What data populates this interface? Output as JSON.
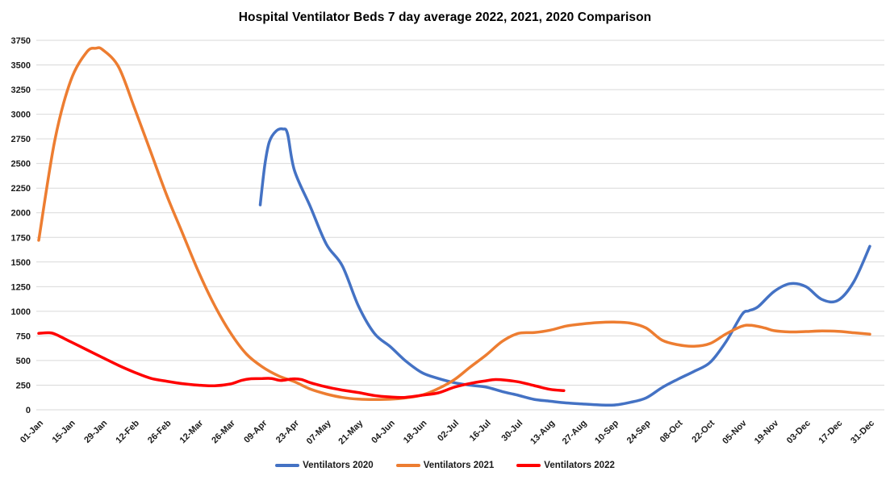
{
  "title": "Hospital Ventilator Beds 7 day average 2022, 2021, 2020 Comparison",
  "chart_data": {
    "type": "line",
    "title": "Hospital Ventilator Beds 7 day average 2022, 2021, 2020 Comparison",
    "xlabel": "",
    "ylabel": "",
    "grid": "horizontal",
    "gridline_color": "#D9D9D9",
    "background": "#FFFFFF",
    "legend_position": "bottom",
    "ylim": [
      0,
      3750
    ],
    "y_ticks": [
      0,
      250,
      500,
      750,
      1000,
      1250,
      1500,
      1750,
      2000,
      2250,
      2500,
      2750,
      3000,
      3250,
      3500,
      3750
    ],
    "x_tick_labels": [
      "01-Jan",
      "15-Jan",
      "29-Jan",
      "12-Feb",
      "26-Feb",
      "12-Mar",
      "26-Mar",
      "09-Apr",
      "23-Apr",
      "07-May",
      "21-May",
      "04-Jun",
      "18-Jun",
      "02-Jul",
      "16-Jul",
      "30-Jul",
      "13-Aug",
      "27-Aug",
      "10-Sep",
      "24-Sep",
      "08-Oct",
      "22-Oct",
      "05-Nov",
      "19-Nov",
      "03-Dec",
      "17-Dec",
      "31-Dec"
    ],
    "x_tick_interval_days": 14,
    "x_range_days": [
      0,
      364
    ],
    "series": [
      {
        "name": "Ventilators 2020",
        "color": "#4472C4",
        "points": [
          [
            97,
            2080
          ],
          [
            99,
            2480
          ],
          [
            101,
            2720
          ],
          [
            104,
            2830
          ],
          [
            107,
            2850
          ],
          [
            109,
            2800
          ],
          [
            112,
            2430
          ],
          [
            119,
            2060
          ],
          [
            126,
            1680
          ],
          [
            133,
            1460
          ],
          [
            140,
            1054
          ],
          [
            147,
            775
          ],
          [
            154,
            640
          ],
          [
            161,
            490
          ],
          [
            168,
            375
          ],
          [
            175,
            318
          ],
          [
            182,
            275
          ],
          [
            189,
            250
          ],
          [
            196,
            230
          ],
          [
            203,
            185
          ],
          [
            210,
            147
          ],
          [
            217,
            106
          ],
          [
            224,
            87
          ],
          [
            231,
            70
          ],
          [
            238,
            60
          ],
          [
            245,
            50
          ],
          [
            252,
            48
          ],
          [
            259,
            75
          ],
          [
            266,
            120
          ],
          [
            273,
            225
          ],
          [
            280,
            311
          ],
          [
            287,
            390
          ],
          [
            294,
            480
          ],
          [
            301,
            690
          ],
          [
            308,
            966
          ],
          [
            311,
            1005
          ],
          [
            315,
            1045
          ],
          [
            322,
            1200
          ],
          [
            329,
            1280
          ],
          [
            336,
            1250
          ],
          [
            343,
            1120
          ],
          [
            350,
            1110
          ],
          [
            357,
            1300
          ],
          [
            364,
            1660
          ]
        ]
      },
      {
        "name": "Ventilators 2021",
        "color": "#ED7D31",
        "points": [
          [
            0,
            1720
          ],
          [
            7,
            2730
          ],
          [
            14,
            3340
          ],
          [
            21,
            3630
          ],
          [
            25,
            3670
          ],
          [
            28,
            3655
          ],
          [
            35,
            3480
          ],
          [
            42,
            3060
          ],
          [
            49,
            2620
          ],
          [
            56,
            2180
          ],
          [
            63,
            1790
          ],
          [
            70,
            1400
          ],
          [
            77,
            1060
          ],
          [
            84,
            780
          ],
          [
            91,
            565
          ],
          [
            98,
            435
          ],
          [
            105,
            345
          ],
          [
            112,
            285
          ],
          [
            119,
            210
          ],
          [
            126,
            160
          ],
          [
            133,
            125
          ],
          [
            140,
            108
          ],
          [
            147,
            104
          ],
          [
            154,
            107
          ],
          [
            161,
            122
          ],
          [
            168,
            150
          ],
          [
            175,
            215
          ],
          [
            182,
            305
          ],
          [
            189,
            434
          ],
          [
            196,
            557
          ],
          [
            203,
            694
          ],
          [
            210,
            775
          ],
          [
            217,
            784
          ],
          [
            224,
            808
          ],
          [
            231,
            850
          ],
          [
            238,
            871
          ],
          [
            245,
            885
          ],
          [
            252,
            890
          ],
          [
            259,
            880
          ],
          [
            266,
            830
          ],
          [
            273,
            707
          ],
          [
            280,
            660
          ],
          [
            287,
            645
          ],
          [
            294,
            672
          ],
          [
            301,
            770
          ],
          [
            308,
            848
          ],
          [
            312,
            857
          ],
          [
            318,
            830
          ],
          [
            322,
            803
          ],
          [
            329,
            790
          ],
          [
            336,
            794
          ],
          [
            343,
            800
          ],
          [
            350,
            796
          ],
          [
            357,
            782
          ],
          [
            364,
            767
          ]
        ]
      },
      {
        "name": "Ventilators 2022",
        "color": "#FF0000",
        "points": [
          [
            0,
            775
          ],
          [
            4,
            782
          ],
          [
            7,
            770
          ],
          [
            14,
            690
          ],
          [
            21,
            610
          ],
          [
            28,
            530
          ],
          [
            35,
            450
          ],
          [
            42,
            380
          ],
          [
            49,
            320
          ],
          [
            56,
            290
          ],
          [
            63,
            265
          ],
          [
            70,
            250
          ],
          [
            77,
            244
          ],
          [
            84,
            262
          ],
          [
            89,
            300
          ],
          [
            93,
            315
          ],
          [
            98,
            318
          ],
          [
            102,
            318
          ],
          [
            106,
            298
          ],
          [
            111,
            314
          ],
          [
            115,
            308
          ],
          [
            119,
            275
          ],
          [
            126,
            232
          ],
          [
            133,
            200
          ],
          [
            140,
            175
          ],
          [
            147,
            145
          ],
          [
            154,
            130
          ],
          [
            160,
            125
          ],
          [
            168,
            148
          ],
          [
            175,
            172
          ],
          [
            182,
            229
          ],
          [
            189,
            268
          ],
          [
            196,
            295
          ],
          [
            200,
            307
          ],
          [
            204,
            302
          ],
          [
            210,
            284
          ],
          [
            217,
            246
          ],
          [
            224,
            207
          ],
          [
            230,
            195
          ]
        ]
      }
    ]
  }
}
